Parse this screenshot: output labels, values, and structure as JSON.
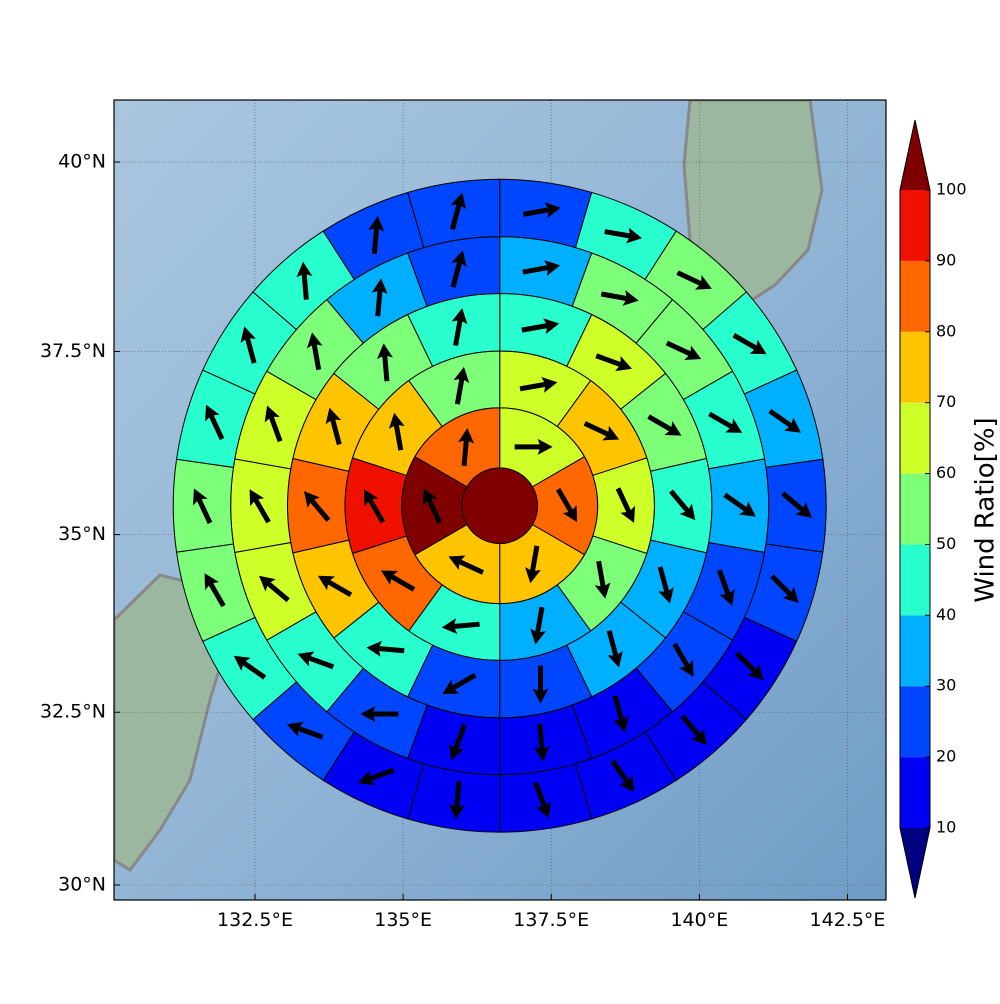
{
  "chart_data": {
    "type": "polar_grid_map",
    "projection": "mercator",
    "xlim": [
      130.12,
      143.15
    ],
    "ylim": [
      29.78,
      40.8
    ],
    "xticks": [
      {
        "value": 132.5,
        "label": "132.5°E"
      },
      {
        "value": 135,
        "label": "135°E"
      },
      {
        "value": 137.5,
        "label": "137.5°E"
      },
      {
        "value": 140,
        "label": "140°E"
      },
      {
        "value": 142.5,
        "label": "142.5°E"
      }
    ],
    "yticks": [
      {
        "value": 30,
        "label": "30°N"
      },
      {
        "value": 32.5,
        "label": "32.5°N"
      },
      {
        "value": 35,
        "label": "35°N"
      },
      {
        "value": 37.5,
        "label": "37.5°N"
      },
      {
        "value": 40,
        "label": "40°N"
      }
    ],
    "grid": true,
    "center": [
      136.63,
      35.4
    ],
    "ring_edges": [
      0,
      58,
      150,
      237,
      325,
      412,
      500
    ],
    "rings": [
      {
        "values": [
          102
        ],
        "directions": [
          null
        ]
      },
      {
        "values": [
          65,
          85,
          75,
          75,
          102,
          85
        ],
        "directions": [
          90,
          150,
          190,
          295,
          335,
          5
        ]
      },
      {
        "values": [
          62,
          75,
          65,
          55,
          35,
          45,
          85,
          95,
          75,
          55
        ],
        "directions": [
          80,
          115,
          155,
          170,
          190,
          265,
          300,
          330,
          350,
          10
        ]
      },
      {
        "values": [
          45,
          62,
          55,
          45,
          35,
          35,
          25,
          25,
          45,
          75,
          85,
          75,
          55,
          45
        ],
        "directions": [
          80,
          110,
          120,
          140,
          165,
          165,
          180,
          240,
          275,
          300,
          320,
          345,
          355,
          10
        ]
      },
      {
        "values": [
          35,
          55,
          55,
          45,
          35,
          25,
          25,
          15,
          15,
          15,
          25,
          45,
          62,
          62,
          62,
          55,
          35,
          25
        ],
        "directions": [
          80,
          100,
          115,
          120,
          125,
          160,
          150,
          165,
          175,
          200,
          270,
          290,
          310,
          330,
          340,
          350,
          5,
          15
        ]
      },
      {
        "values": [
          25,
          45,
          55,
          45,
          35,
          25,
          25,
          15,
          15,
          15,
          15,
          15,
          15,
          25,
          45,
          55,
          55,
          45,
          45,
          45,
          25,
          25
        ],
        "directions": [
          80,
          100,
          115,
          120,
          125,
          130,
          135,
          135,
          140,
          145,
          160,
          185,
          250,
          290,
          305,
          330,
          335,
          335,
          345,
          355,
          5,
          15
        ]
      }
    ],
    "colorbar": {
      "label": "Wind Ratio[%]",
      "extend": "both",
      "levels": [
        10,
        20,
        30,
        40,
        50,
        60,
        70,
        80,
        90,
        100
      ],
      "colors": [
        "#000080",
        "#0000f5",
        "#0046ff",
        "#00b0ff",
        "#29ffce",
        "#7dff7a",
        "#ceff29",
        "#ffc400",
        "#ff6800",
        "#f01000",
        "#800000"
      ],
      "ticks": [
        10,
        20,
        30,
        40,
        50,
        60,
        70,
        80,
        90,
        100
      ]
    }
  }
}
